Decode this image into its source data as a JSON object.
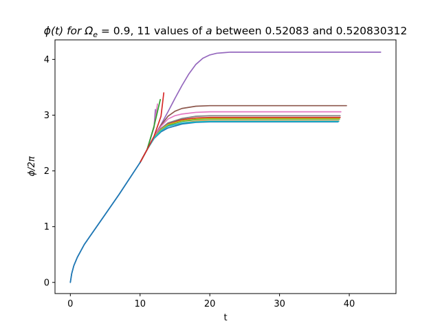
{
  "chart_data": {
    "type": "line",
    "title": {
      "prefix": "ϕ(t) for Ω",
      "sub": "e",
      "suffix_before_a": " = 0.9, 11 values of ",
      "a_symbol": "a",
      "suffix_after_a": " between 0.52083 and 0.520830312"
    },
    "xlabel": "t",
    "ylabel": {
      "before": "ϕ/2",
      "pi": "π"
    },
    "xlim": [
      -2.2,
      46.7
    ],
    "ylim": [
      -0.2,
      4.35
    ],
    "xticks": [
      0,
      10,
      20,
      30,
      40
    ],
    "yticks": [
      0,
      1,
      2,
      3,
      4
    ],
    "xtick_labels": [
      "0",
      "10",
      "20",
      "30",
      "40"
    ],
    "ytick_labels": [
      "0",
      "1",
      "2",
      "3",
      "4"
    ],
    "grid": false,
    "legend": "none",
    "colors": [
      "#1f77b4",
      "#ff7f0e",
      "#2ca02c",
      "#d62728",
      "#9467bd",
      "#8c564b",
      "#e377c2",
      "#7f7f7f",
      "#bcbd22",
      "#17becf"
    ],
    "series": [
      {
        "color": "#1f77b4",
        "x": [
          0,
          0.2,
          0.5,
          1,
          2,
          3,
          5,
          7,
          9,
          10,
          11,
          12,
          13,
          14,
          16,
          18,
          20,
          25,
          30,
          38.4
        ],
        "y": [
          0,
          0.16,
          0.3,
          0.45,
          0.68,
          0.86,
          1.22,
          1.58,
          1.96,
          2.15,
          2.38,
          2.58,
          2.7,
          2.77,
          2.84,
          2.87,
          2.88,
          2.88,
          2.88,
          2.88
        ]
      },
      {
        "color": "#ff7f0e",
        "x": [
          10,
          11,
          12,
          13,
          14,
          16,
          18,
          20,
          25,
          30,
          38.5
        ],
        "y": [
          2.15,
          2.38,
          2.59,
          2.72,
          2.8,
          2.86,
          2.89,
          2.9,
          2.9,
          2.9,
          2.9
        ]
      },
      {
        "color": "#2ca02c",
        "x": [
          10,
          11,
          12,
          13,
          14,
          16,
          18,
          20,
          25,
          30,
          38.6
        ],
        "y": [
          2.15,
          2.38,
          2.6,
          2.74,
          2.82,
          2.89,
          2.92,
          2.93,
          2.93,
          2.93,
          2.93
        ]
      },
      {
        "color": "#d62728",
        "x": [
          10,
          11,
          12,
          13,
          14,
          16,
          18,
          20,
          25,
          30,
          38.7
        ],
        "y": [
          2.15,
          2.38,
          2.6,
          2.76,
          2.85,
          2.92,
          2.95,
          2.96,
          2.96,
          2.96,
          2.96
        ]
      },
      {
        "color": "#9467bd",
        "x": [
          10,
          11,
          12,
          13,
          14,
          15,
          16,
          17,
          18,
          19,
          20,
          21,
          22,
          23,
          25,
          30,
          35,
          44.5
        ],
        "y": [
          2.15,
          2.38,
          2.61,
          2.83,
          3.06,
          3.3,
          3.53,
          3.74,
          3.91,
          4.02,
          4.08,
          4.11,
          4.12,
          4.13,
          4.13,
          4.13,
          4.13,
          4.13
        ]
      },
      {
        "color": "#8c564b",
        "x": [
          10,
          11,
          12,
          13,
          14,
          15,
          16,
          18,
          20,
          25,
          30,
          39.6
        ],
        "y": [
          2.15,
          2.38,
          2.61,
          2.82,
          2.98,
          3.07,
          3.12,
          3.16,
          3.17,
          3.17,
          3.17,
          3.17
        ]
      },
      {
        "color": "#e377c2",
        "x": [
          10,
          11,
          12,
          13,
          14,
          15,
          16,
          18,
          20,
          25,
          30,
          38.8
        ],
        "y": [
          2.15,
          2.38,
          2.61,
          2.8,
          2.93,
          2.99,
          3.02,
          3.05,
          3.06,
          3.06,
          3.06,
          3.06
        ]
      },
      {
        "color": "#7f7f7f",
        "x": [
          10,
          11,
          12,
          13,
          14,
          16,
          18,
          20,
          25,
          30,
          38.7
        ],
        "y": [
          2.15,
          2.38,
          2.6,
          2.76,
          2.86,
          2.94,
          2.98,
          2.99,
          2.99,
          2.99,
          2.99
        ]
      },
      {
        "color": "#bcbd22",
        "x": [
          10,
          11,
          12,
          13,
          14,
          16,
          18,
          20,
          25,
          30,
          38.6
        ],
        "y": [
          2.15,
          2.38,
          2.6,
          2.74,
          2.83,
          2.9,
          2.93,
          2.94,
          2.94,
          2.94,
          2.94
        ]
      },
      {
        "color": "#17becf",
        "x": [
          10,
          11,
          12,
          13,
          14,
          16,
          18,
          20,
          25,
          30,
          38.5
        ],
        "y": [
          2.15,
          2.38,
          2.59,
          2.72,
          2.8,
          2.86,
          2.88,
          2.89,
          2.89,
          2.89,
          2.89
        ]
      },
      {
        "color": "#9467bd",
        "x": [
          10,
          11,
          12,
          12.2
        ],
        "y": [
          2.15,
          2.38,
          2.78,
          3.1
        ]
      },
      {
        "color": "#e377c2",
        "x": [
          10,
          11,
          12,
          12.5
        ],
        "y": [
          2.15,
          2.38,
          2.79,
          3.2
        ]
      },
      {
        "color": "#2ca02c",
        "x": [
          10,
          11,
          12,
          12.9
        ],
        "y": [
          2.15,
          2.38,
          2.8,
          3.28
        ]
      },
      {
        "color": "#d62728",
        "x": [
          10,
          11,
          12,
          13,
          13.4
        ],
        "y": [
          2.15,
          2.38,
          2.62,
          2.98,
          3.4
        ]
      },
      {
        "color": "#1f77b4",
        "x": [
          0,
          0.2,
          0.5,
          1,
          2,
          3,
          5,
          7,
          9,
          10
        ],
        "y": [
          0,
          0.16,
          0.3,
          0.45,
          0.68,
          0.86,
          1.22,
          1.58,
          1.96,
          2.15
        ]
      }
    ]
  }
}
